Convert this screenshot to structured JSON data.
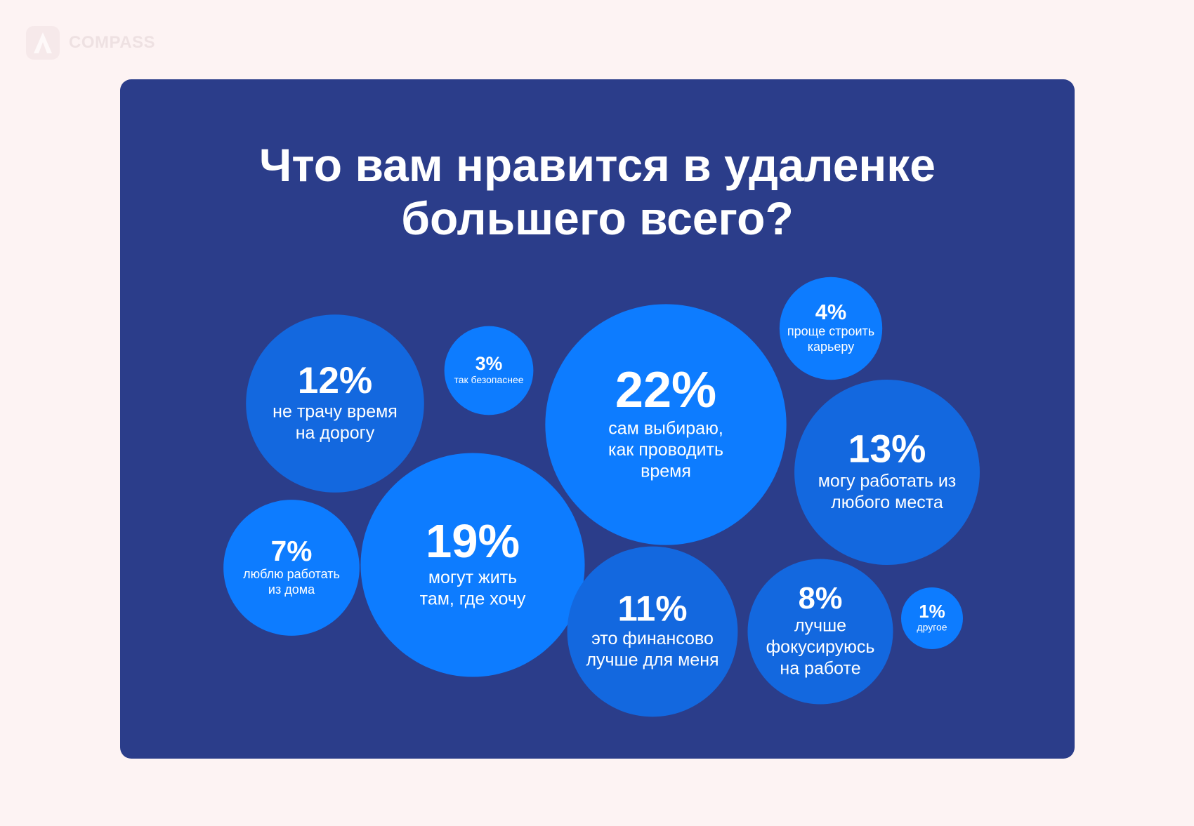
{
  "brand": {
    "name": "COMPASS"
  },
  "chart_data": {
    "type": "bubble",
    "title": "Что вам нравится в удаленке\nбольшего всего?",
    "colors": {
      "page_background": "#fdf3f3",
      "panel_background": "#2b3d8a",
      "bubble_bright": "#0d7cff",
      "bubble_medium": "#1368df",
      "text": "#ffffff"
    },
    "categories": [
      "не трачу время на дорогу",
      "так безопаснее",
      "сам выбираю, как проводить время",
      "проще строить карьеру",
      "могу работать из любого места",
      "люблю работать из дома",
      "могут жить там, где хочу",
      "это финансово лучше для меня",
      "лучше фокусируюсь на работе",
      "другое"
    ],
    "values": [
      12,
      3,
      22,
      4,
      13,
      7,
      19,
      11,
      8,
      1
    ],
    "value_labels": [
      "12%",
      "3%",
      "22%",
      "4%",
      "13%",
      "7%",
      "19%",
      "11%",
      "8%",
      "1%"
    ],
    "label_lines": [
      [
        "не трачу время",
        "на дорогу"
      ],
      [
        "так безопаснее"
      ],
      [
        "сам выбираю,",
        "как проводить",
        "время"
      ],
      [
        "проще строить",
        "карьеру"
      ],
      [
        "могу работать из",
        "любого места"
      ],
      [
        "люблю работать",
        "из дома"
      ],
      [
        "могут жить",
        "там, где хочу"
      ],
      [
        "это финансово",
        "лучше для меня"
      ],
      [
        "лучше",
        "фокусируюсь",
        "на работе"
      ],
      [
        "другое"
      ]
    ],
    "bubble_colors": [
      "#1368df",
      "#0d7cff",
      "#0d7cff",
      "#0d7cff",
      "#1368df",
      "#0d7cff",
      "#0d7cff",
      "#1368df",
      "#1368df",
      "#0d7cff"
    ],
    "unit": "%"
  }
}
